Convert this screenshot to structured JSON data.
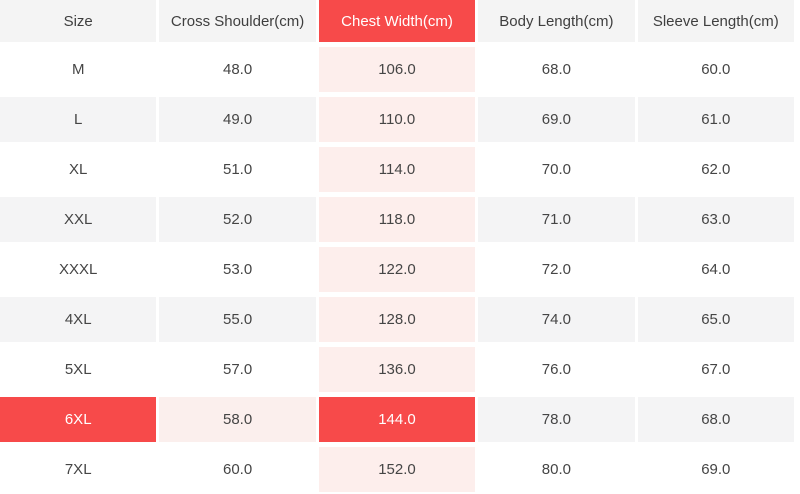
{
  "table": {
    "columns": [
      {
        "label": "Size",
        "highlighted": false
      },
      {
        "label": "Cross Shoulder(cm)",
        "highlighted": false
      },
      {
        "label": "Chest Width(cm)",
        "highlighted": true
      },
      {
        "label": "Body Length(cm)",
        "highlighted": false
      },
      {
        "label": "Sleeve Length(cm)",
        "highlighted": false
      }
    ],
    "rows": [
      {
        "size": "M",
        "cross_shoulder": "48.0",
        "chest_width": "106.0",
        "body_length": "68.0",
        "sleeve_length": "60.0"
      },
      {
        "size": "L",
        "cross_shoulder": "49.0",
        "chest_width": "110.0",
        "body_length": "69.0",
        "sleeve_length": "61.0"
      },
      {
        "size": "XL",
        "cross_shoulder": "51.0",
        "chest_width": "114.0",
        "body_length": "70.0",
        "sleeve_length": "62.0"
      },
      {
        "size": "XXL",
        "cross_shoulder": "52.0",
        "chest_width": "118.0",
        "body_length": "71.0",
        "sleeve_length": "63.0"
      },
      {
        "size": "XXXL",
        "cross_shoulder": "53.0",
        "chest_width": "122.0",
        "body_length": "72.0",
        "sleeve_length": "64.0"
      },
      {
        "size": "4XL",
        "cross_shoulder": "55.0",
        "chest_width": "128.0",
        "body_length": "74.0",
        "sleeve_length": "65.0"
      },
      {
        "size": "5XL",
        "cross_shoulder": "57.0",
        "chest_width": "136.0",
        "body_length": "76.0",
        "sleeve_length": "67.0"
      },
      {
        "size": "6XL",
        "cross_shoulder": "58.0",
        "chest_width": "144.0",
        "body_length": "78.0",
        "sleeve_length": "68.0"
      },
      {
        "size": "7XL",
        "cross_shoulder": "60.0",
        "chest_width": "152.0",
        "body_length": "80.0",
        "sleeve_length": "69.0"
      }
    ],
    "highlighted_column": "Chest Width(cm)",
    "highlighted_row": "6XL"
  },
  "colors": {
    "highlight_red": "#f74a4a",
    "highlight_pink": "#fdeeec",
    "selected_row_pink": "#fbefed",
    "row_alt_gray": "#f4f4f5",
    "header_gray": "#f4f4f4",
    "text_dark": "#454545"
  }
}
